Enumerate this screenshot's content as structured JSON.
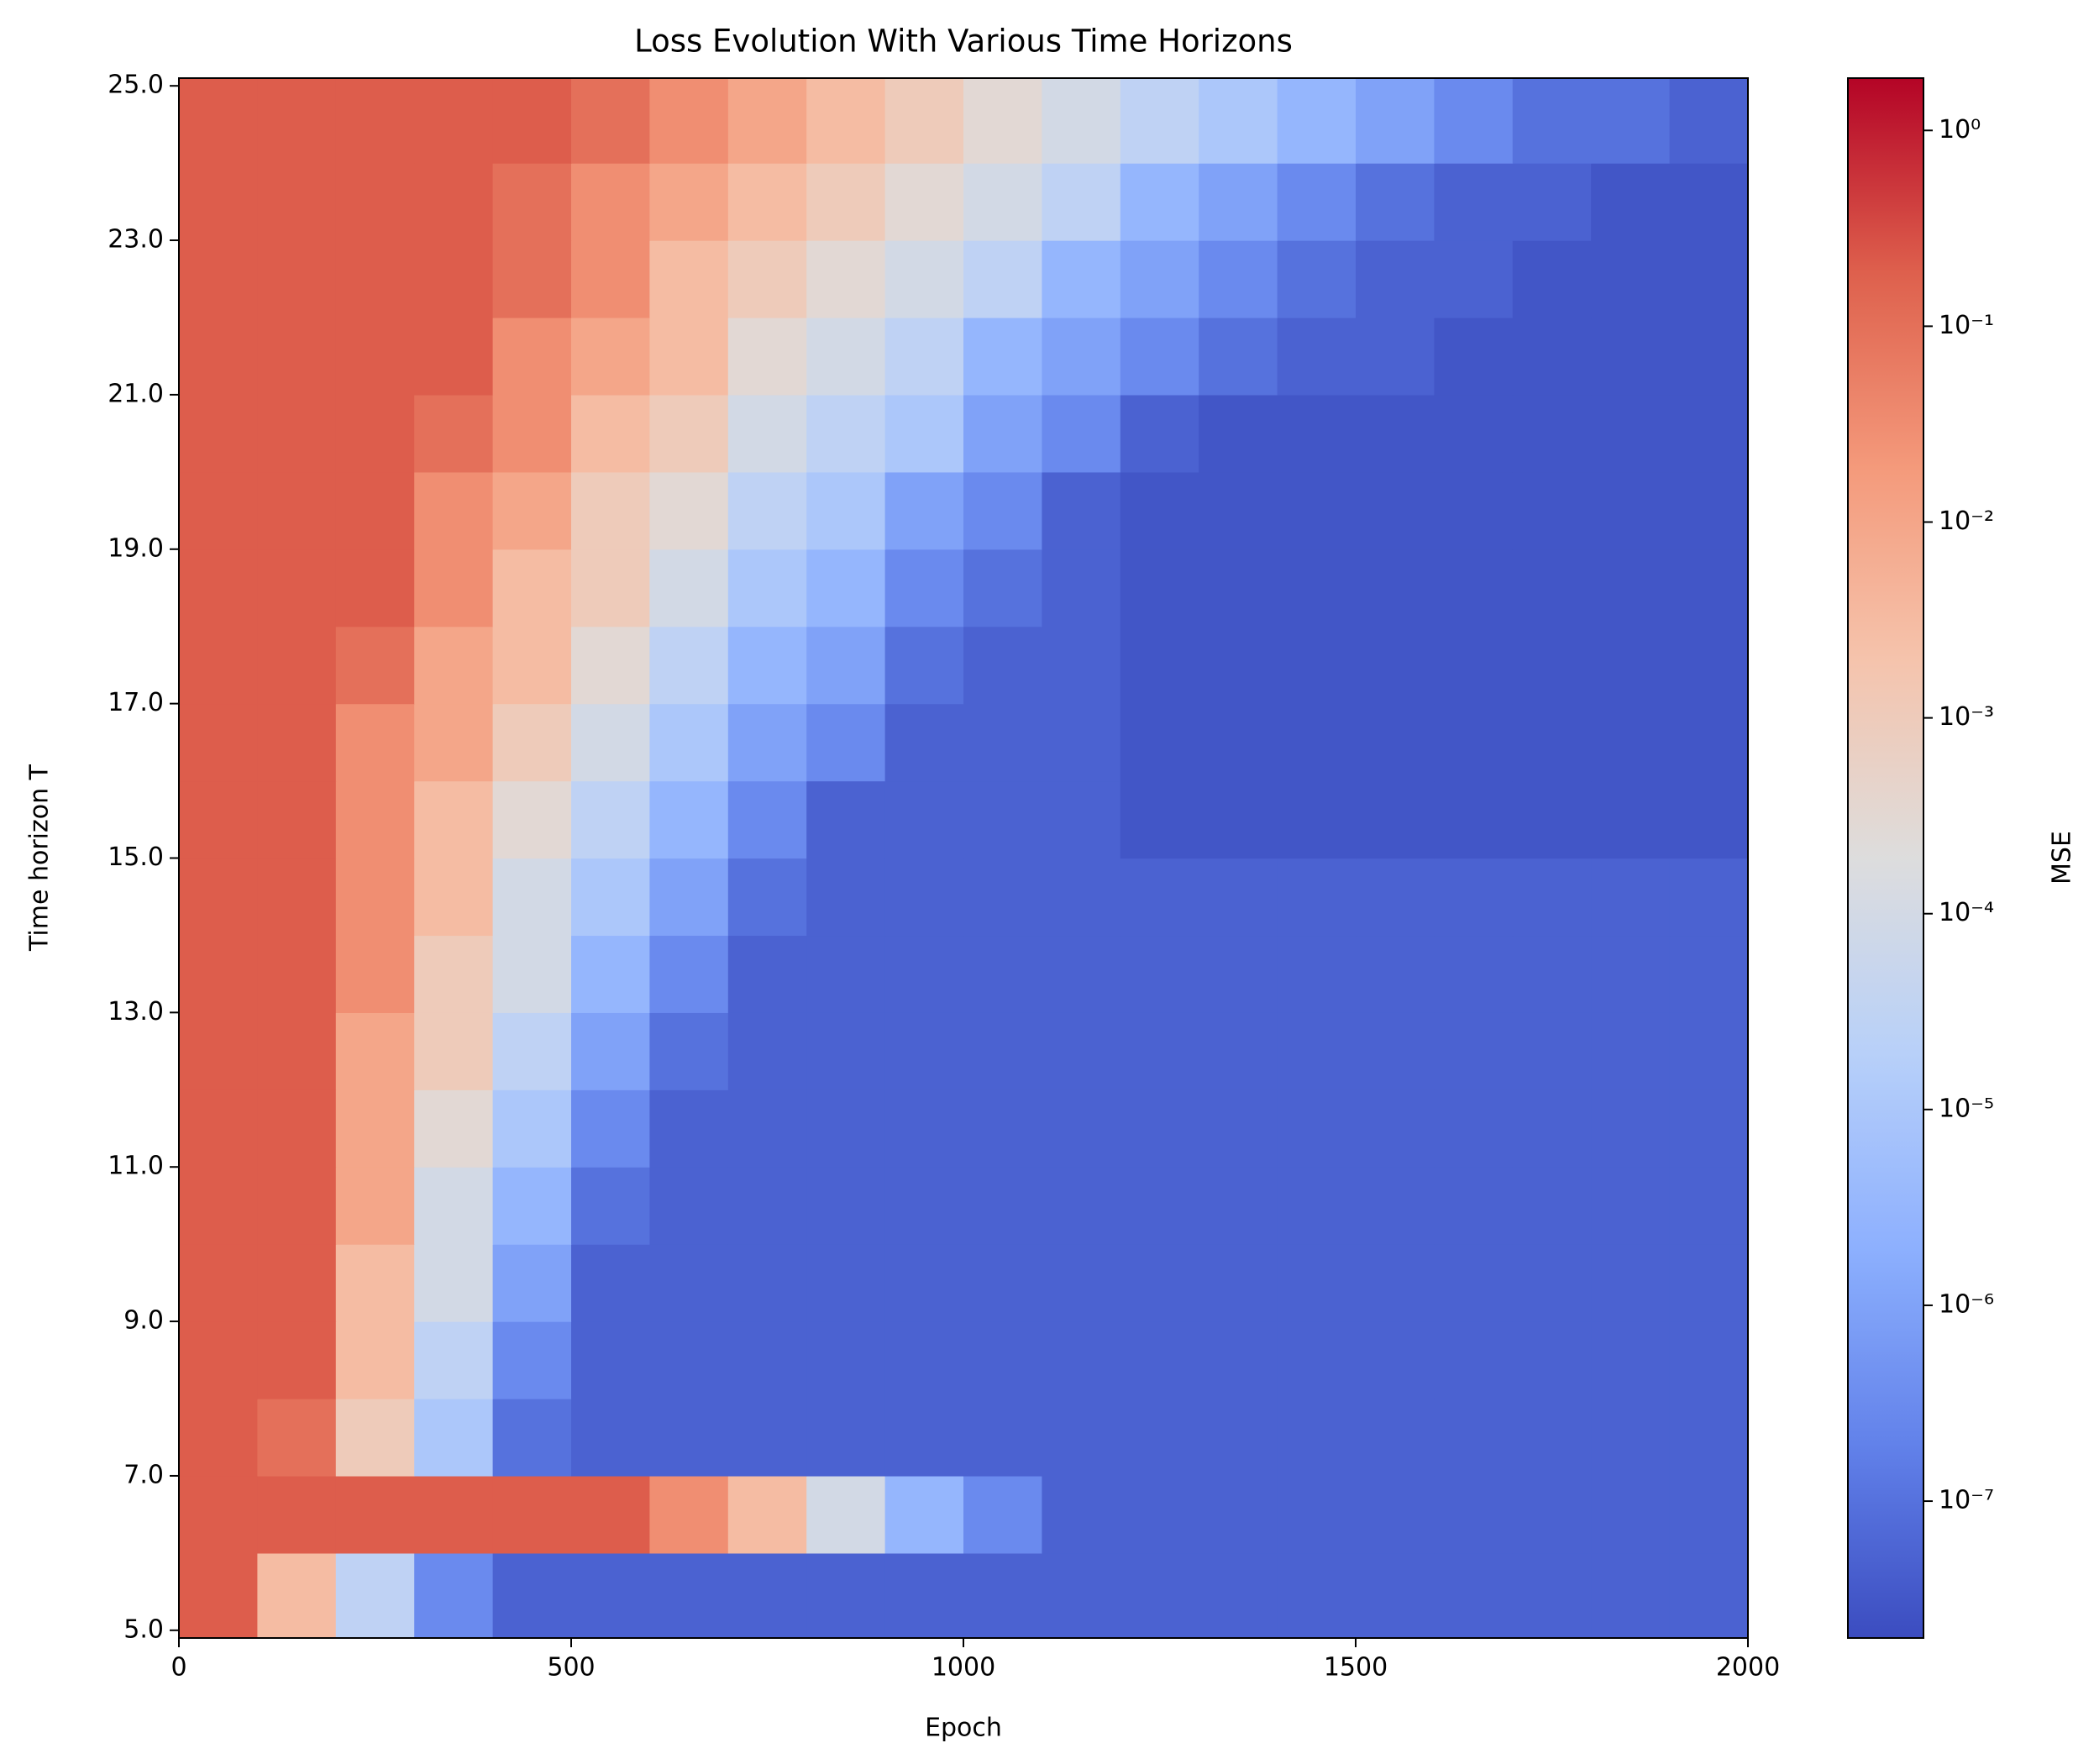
{
  "chart_data": {
    "type": "heatmap",
    "title": "Loss Evolution With Various Time Horizons",
    "x_label": "Epoch",
    "y_label": "Time horizon T",
    "colorbar_label": "MSE",
    "colormap": "coolwarm",
    "color_scale": "log",
    "x_edges": [
      0,
      100,
      200,
      300,
      400,
      500,
      600,
      700,
      800,
      900,
      1000,
      1100,
      1200,
      1300,
      1400,
      1500,
      1600,
      1700,
      1800,
      1900,
      2000
    ],
    "y_edges": [
      4.9,
      6,
      7,
      8,
      9,
      10,
      11,
      12,
      13,
      14,
      15,
      16,
      17,
      18,
      19,
      20,
      21,
      22,
      23,
      24,
      25.1
    ],
    "values": [
      [
        0.2,
        0.003,
        3e-05,
        3e-07,
        5e-08,
        5e-08,
        5e-08,
        5e-08,
        5e-08,
        5e-08,
        5e-08,
        5e-08,
        5e-08,
        5e-08,
        5e-08,
        5e-08,
        5e-08,
        5e-08,
        5e-08,
        5e-08
      ],
      [
        0.2,
        0.2,
        0.2,
        0.2,
        0.2,
        0.2,
        0.03,
        0.003,
        0.0001,
        3e-06,
        3e-07,
        5e-08,
        5e-08,
        5e-08,
        5e-08,
        5e-08,
        5e-08,
        5e-08,
        5e-08,
        5e-08
      ],
      [
        0.2,
        0.1,
        0.001,
        1e-05,
        1e-07,
        5e-08,
        5e-08,
        5e-08,
        5e-08,
        5e-08,
        5e-08,
        5e-08,
        5e-08,
        5e-08,
        5e-08,
        5e-08,
        5e-08,
        5e-08,
        5e-08,
        5e-08
      ],
      [
        0.2,
        0.2,
        0.003,
        3e-05,
        3e-07,
        5e-08,
        5e-08,
        5e-08,
        5e-08,
        5e-08,
        5e-08,
        5e-08,
        5e-08,
        5e-08,
        5e-08,
        5e-08,
        5e-08,
        5e-08,
        5e-08,
        5e-08
      ],
      [
        0.2,
        0.2,
        0.003,
        0.0001,
        1e-06,
        5e-08,
        5e-08,
        5e-08,
        5e-08,
        5e-08,
        5e-08,
        5e-08,
        5e-08,
        5e-08,
        5e-08,
        5e-08,
        5e-08,
        5e-08,
        5e-08,
        5e-08
      ],
      [
        0.2,
        0.2,
        0.01,
        0.0001,
        3e-06,
        1e-07,
        5e-08,
        5e-08,
        5e-08,
        5e-08,
        5e-08,
        5e-08,
        5e-08,
        5e-08,
        5e-08,
        5e-08,
        5e-08,
        5e-08,
        5e-08,
        5e-08
      ],
      [
        0.2,
        0.2,
        0.01,
        0.0003,
        1e-05,
        3e-07,
        5e-08,
        5e-08,
        5e-08,
        5e-08,
        5e-08,
        5e-08,
        5e-08,
        5e-08,
        5e-08,
        5e-08,
        5e-08,
        5e-08,
        5e-08,
        5e-08
      ],
      [
        0.2,
        0.2,
        0.01,
        0.001,
        3e-05,
        1e-06,
        1e-07,
        5e-08,
        5e-08,
        5e-08,
        5e-08,
        5e-08,
        5e-08,
        5e-08,
        5e-08,
        5e-08,
        5e-08,
        5e-08,
        5e-08,
        5e-08
      ],
      [
        0.2,
        0.2,
        0.03,
        0.001,
        0.0001,
        3e-06,
        3e-07,
        5e-08,
        5e-08,
        5e-08,
        5e-08,
        5e-08,
        5e-08,
        5e-08,
        5e-08,
        5e-08,
        5e-08,
        5e-08,
        5e-08,
        5e-08
      ],
      [
        0.2,
        0.2,
        0.03,
        0.003,
        0.0001,
        1e-05,
        1e-06,
        1e-07,
        5e-08,
        5e-08,
        5e-08,
        5e-08,
        5e-08,
        5e-08,
        5e-08,
        5e-08,
        5e-08,
        5e-08,
        5e-08,
        5e-08
      ],
      [
        0.2,
        0.2,
        0.03,
        0.003,
        0.0003,
        3e-05,
        3e-06,
        3e-07,
        5e-08,
        5e-08,
        5e-08,
        5e-08,
        3e-08,
        3e-08,
        3e-08,
        3e-08,
        3e-08,
        3e-08,
        3e-08,
        3e-08
      ],
      [
        0.2,
        0.2,
        0.03,
        0.01,
        0.001,
        0.0001,
        1e-05,
        1e-06,
        3e-07,
        5e-08,
        5e-08,
        5e-08,
        3e-08,
        3e-08,
        3e-08,
        3e-08,
        3e-08,
        3e-08,
        3e-08,
        3e-08
      ],
      [
        0.2,
        0.2,
        0.1,
        0.01,
        0.003,
        0.0003,
        3e-05,
        3e-06,
        1e-06,
        1e-07,
        5e-08,
        5e-08,
        3e-08,
        3e-08,
        3e-08,
        3e-08,
        3e-08,
        3e-08,
        3e-08,
        3e-08
      ],
      [
        0.2,
        0.2,
        0.2,
        0.03,
        0.003,
        0.001,
        0.0001,
        1e-05,
        3e-06,
        3e-07,
        1e-07,
        5e-08,
        3e-08,
        3e-08,
        3e-08,
        3e-08,
        3e-08,
        3e-08,
        3e-08,
        3e-08
      ],
      [
        0.2,
        0.2,
        0.2,
        0.03,
        0.01,
        0.001,
        0.0003,
        3e-05,
        1e-05,
        1e-06,
        3e-07,
        5e-08,
        3e-08,
        3e-08,
        3e-08,
        3e-08,
        3e-08,
        3e-08,
        3e-08,
        3e-08
      ],
      [
        0.2,
        0.2,
        0.2,
        0.1,
        0.03,
        0.003,
        0.001,
        0.0001,
        3e-05,
        1e-05,
        1e-06,
        3e-07,
        5e-08,
        3e-08,
        3e-08,
        3e-08,
        3e-08,
        3e-08,
        3e-08,
        3e-08
      ],
      [
        0.2,
        0.2,
        0.2,
        0.2,
        0.03,
        0.01,
        0.003,
        0.0003,
        0.0001,
        3e-05,
        3e-06,
        1e-06,
        3e-07,
        1e-07,
        5e-08,
        5e-08,
        3e-08,
        3e-08,
        3e-08,
        3e-08
      ],
      [
        0.2,
        0.2,
        0.2,
        0.2,
        0.1,
        0.03,
        0.003,
        0.001,
        0.0003,
        0.0001,
        3e-05,
        3e-06,
        1e-06,
        3e-07,
        1e-07,
        5e-08,
        5e-08,
        3e-08,
        3e-08,
        3e-08
      ],
      [
        0.2,
        0.2,
        0.2,
        0.2,
        0.1,
        0.03,
        0.01,
        0.003,
        0.001,
        0.0003,
        0.0001,
        3e-05,
        3e-06,
        1e-06,
        3e-07,
        1e-07,
        5e-08,
        5e-08,
        3e-08,
        3e-08
      ],
      [
        0.2,
        0.2,
        0.2,
        0.2,
        0.2,
        0.1,
        0.03,
        0.01,
        0.003,
        0.001,
        0.0003,
        0.0001,
        3e-05,
        1e-05,
        3e-06,
        1e-06,
        3e-07,
        1e-07,
        1e-07,
        5e-08
      ]
    ],
    "xlim": [
      0,
      2000
    ],
    "ylim": [
      4.9,
      25.1
    ],
    "xticks": [
      0,
      500,
      1000,
      1500,
      2000
    ],
    "yticks": [
      {
        "value": 5,
        "label": "5.0"
      },
      {
        "value": 7,
        "label": "7.0"
      },
      {
        "value": 9,
        "label": "9.0"
      },
      {
        "value": 11,
        "label": "11.0"
      },
      {
        "value": 13,
        "label": "13.0"
      },
      {
        "value": 15,
        "label": "15.0"
      },
      {
        "value": 17,
        "label": "17.0"
      },
      {
        "value": 19,
        "label": "19.0"
      },
      {
        "value": 21,
        "label": "21.0"
      },
      {
        "value": 23,
        "label": "23.0"
      },
      {
        "value": 25,
        "label": "25.0"
      }
    ],
    "clim": [
      2e-08,
      1.85
    ],
    "cticks": [
      {
        "value": 1,
        "label": "10⁰"
      },
      {
        "value": 0.1,
        "label": "10⁻¹"
      },
      {
        "value": 0.01,
        "label": "10⁻²"
      },
      {
        "value": 0.001,
        "label": "10⁻³"
      },
      {
        "value": 0.0001,
        "label": "10⁻⁴"
      },
      {
        "value": 1e-05,
        "label": "10⁻⁵"
      },
      {
        "value": 1e-06,
        "label": "10⁻⁶"
      },
      {
        "value": 1e-07,
        "label": "10⁻⁷"
      }
    ]
  }
}
